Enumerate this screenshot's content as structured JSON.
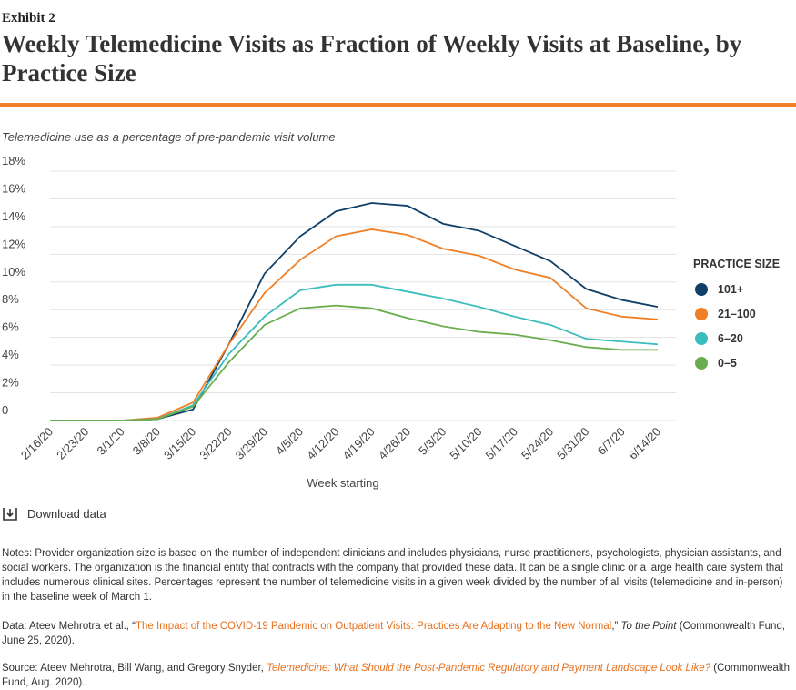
{
  "header": {
    "exhibit": "Exhibit 2",
    "title": "Weekly Telemedicine Visits as Fraction of Weekly Visits at Baseline, by Practice Size"
  },
  "chart_data": {
    "type": "line",
    "subtitle": "Telemedicine use as a percentage of pre-pandemic visit volume",
    "xlabel": "Week starting",
    "legend_title": "PRACTICE SIZE",
    "categories": [
      "2/16/20",
      "2/23/20",
      "3/1/20",
      "3/8/20",
      "3/15/20",
      "3/22/20",
      "3/29/20",
      "4/5/20",
      "4/12/20",
      "4/19/20",
      "4/26/20",
      "5/3/20",
      "5/10/20",
      "5/17/20",
      "5/24/20",
      "5/31/20",
      "6/7/20",
      "6/14/20"
    ],
    "series": [
      {
        "name": "101+",
        "color": "#123f67",
        "values": [
          0,
          0,
          0,
          0.1,
          0.8,
          5.5,
          10.6,
          13.3,
          15.1,
          15.7,
          15.5,
          14.2,
          13.7,
          12.6,
          11.5,
          9.5,
          8.7,
          8.2
        ]
      },
      {
        "name": "21–100",
        "color": "#f07f25",
        "values": [
          0,
          0,
          0,
          0.2,
          1.3,
          5.5,
          9.2,
          11.6,
          13.3,
          13.8,
          13.4,
          12.4,
          11.9,
          10.9,
          10.3,
          8.1,
          7.5,
          7.3
        ]
      },
      {
        "name": "6–20",
        "color": "#3cbdbd",
        "values": [
          0,
          0,
          0,
          0.1,
          1.1,
          4.8,
          7.5,
          9.4,
          9.8,
          9.8,
          9.3,
          8.8,
          8.2,
          7.5,
          6.9,
          5.9,
          5.7,
          5.5
        ]
      },
      {
        "name": "0–5",
        "color": "#6aad4f",
        "values": [
          0,
          0,
          0,
          0.1,
          1.0,
          4.2,
          6.9,
          8.1,
          8.3,
          8.1,
          7.4,
          6.8,
          6.4,
          6.2,
          5.8,
          5.3,
          5.1,
          5.1
        ]
      }
    ],
    "ylim": [
      0,
      18
    ],
    "yticks": [
      0,
      {
        "value": 2,
        "label": "2%"
      },
      {
        "value": 4,
        "label": "4%"
      },
      {
        "value": 6,
        "label": "6%"
      },
      {
        "value": 8,
        "label": "8%"
      },
      {
        "value": 10,
        "label": "10%"
      },
      {
        "value": 12,
        "label": "12%"
      },
      {
        "value": 14,
        "label": "14%"
      },
      {
        "value": 16,
        "label": "16%"
      },
      {
        "value": 18,
        "label": "18%"
      }
    ],
    "grid": true
  },
  "download": "Download data",
  "notes": {
    "notes": "Notes: Provider organization size is based on the number of independent clinicians and includes physicians, nurse practitioners, psychologists, physician assistants, and social workers. The organization is the financial entity that contracts with the company that provided these data. It can be a single clinic or a large health care system that includes numerous clinical sites. Percentages represent the number of telemedicine visits in a given week divided by the number of all visits (telemedicine and in-person) in the baseline week of March 1.",
    "data": [
      "Data: Ateev Mehrotra et al., “",
      "The Impact of the COVID-19 Pandemic on Outpatient Visits: Practices Are Adapting to the New Normal",
      ",” ",
      "To the Point",
      " (Commonwealth Fund, June 25, 2020)."
    ],
    "source": [
      "Source: Ateev Mehrotra, Bill Wang, and Gregory Snyder, ",
      "Telemedicine: What Should the Post-Pandemic Regulatory and Payment Landscape Look Like?",
      " (Commonwealth Fund, Aug. 2020)."
    ]
  }
}
